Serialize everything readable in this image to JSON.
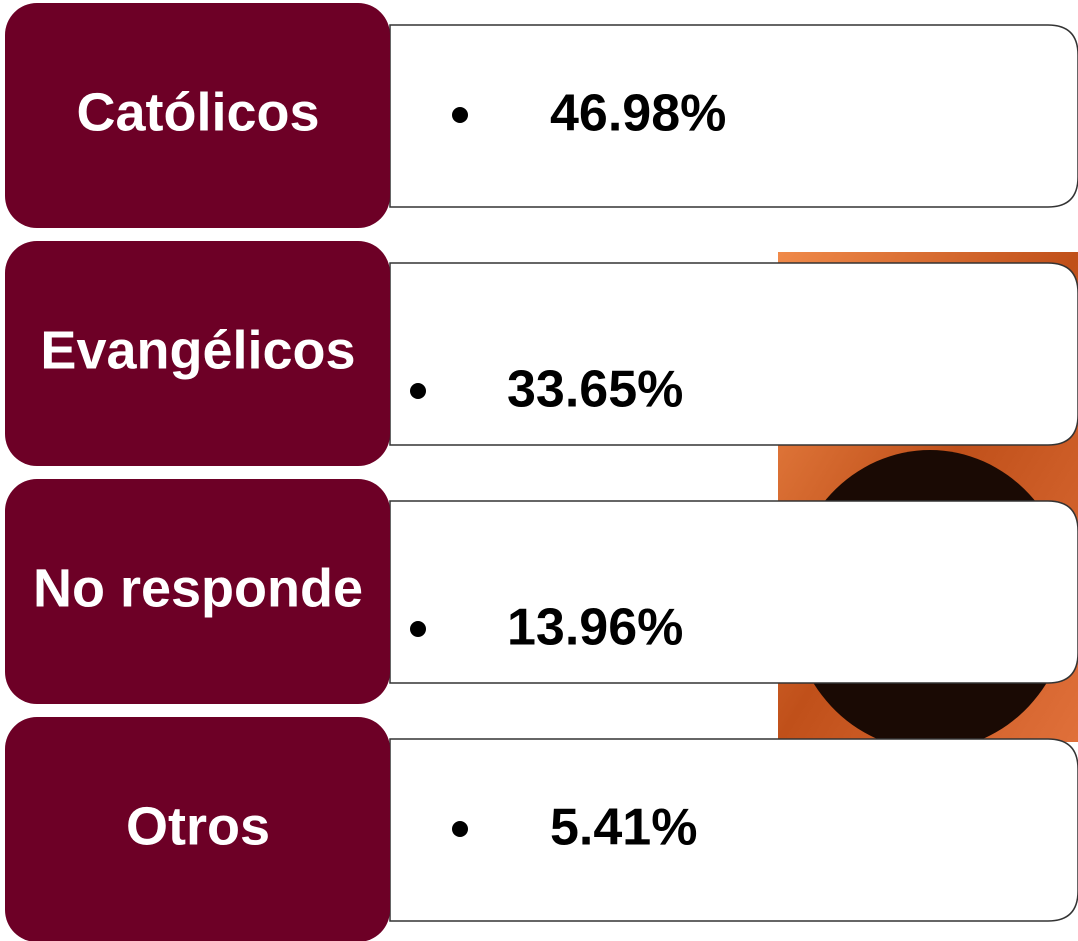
{
  "items": [
    {
      "label": "Católicos",
      "value": "46.98%"
    },
    {
      "label": "Evangélicos",
      "value": "33.65%"
    },
    {
      "label": "No responde",
      "value": "13.96%"
    },
    {
      "label": "Otros",
      "value": "5.41%"
    }
  ]
}
